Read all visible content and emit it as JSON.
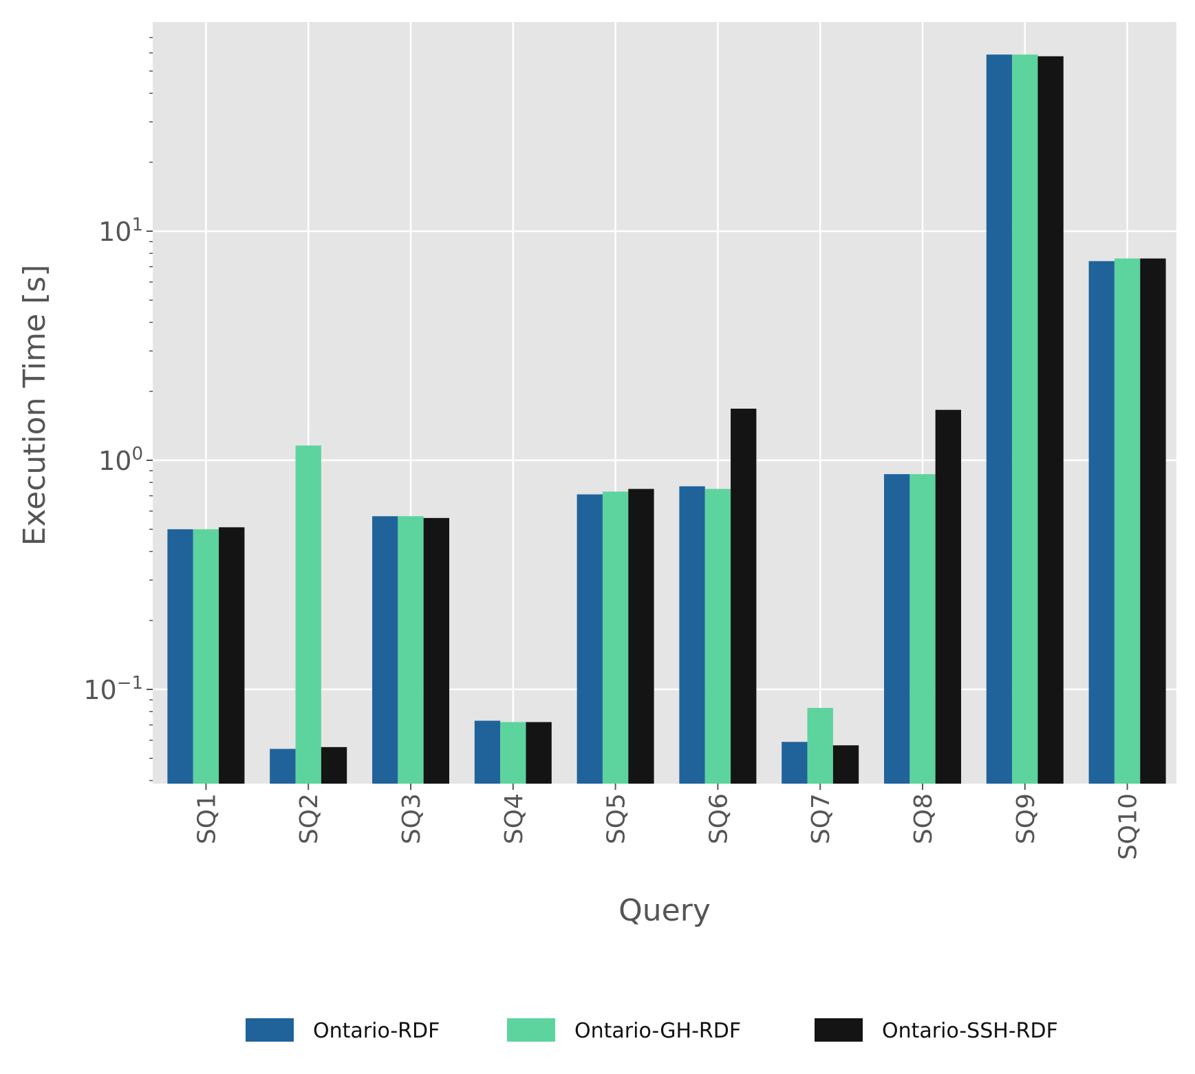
{
  "chart_data": {
    "type": "bar",
    "scale": "log",
    "categories": [
      "SQ1",
      "SQ2",
      "SQ3",
      "SQ4",
      "SQ5",
      "SQ6",
      "SQ7",
      "SQ8",
      "SQ9",
      "SQ10"
    ],
    "series": [
      {
        "name": "Ontario-RDF",
        "color": "#20639b",
        "values": [
          0.5,
          0.055,
          0.57,
          0.073,
          0.71,
          0.77,
          0.059,
          0.87,
          59.0,
          7.4
        ]
      },
      {
        "name": "Ontario-GH-RDF",
        "color": "#5dd39e",
        "values": [
          0.5,
          1.16,
          0.57,
          0.072,
          0.73,
          0.75,
          0.083,
          0.87,
          59.0,
          7.6
        ]
      },
      {
        "name": "Ontario-SSH-RDF",
        "color": "#141414",
        "values": [
          0.51,
          0.056,
          0.56,
          0.072,
          0.75,
          1.68,
          0.057,
          1.66,
          58.0,
          7.6
        ]
      }
    ],
    "xlabel": "Query",
    "ylabel": "Execution Time [s]",
    "ylim": [
      0.04,
      75
    ],
    "yticks": [
      {
        "value": 0.1,
        "base": "10",
        "exp": "−1"
      },
      {
        "value": 1,
        "base": "10",
        "exp": "0"
      },
      {
        "value": 10,
        "base": "10",
        "exp": "1"
      }
    ],
    "grid": true,
    "legend_position": "bottom-center",
    "background": "#e5e5e5"
  }
}
